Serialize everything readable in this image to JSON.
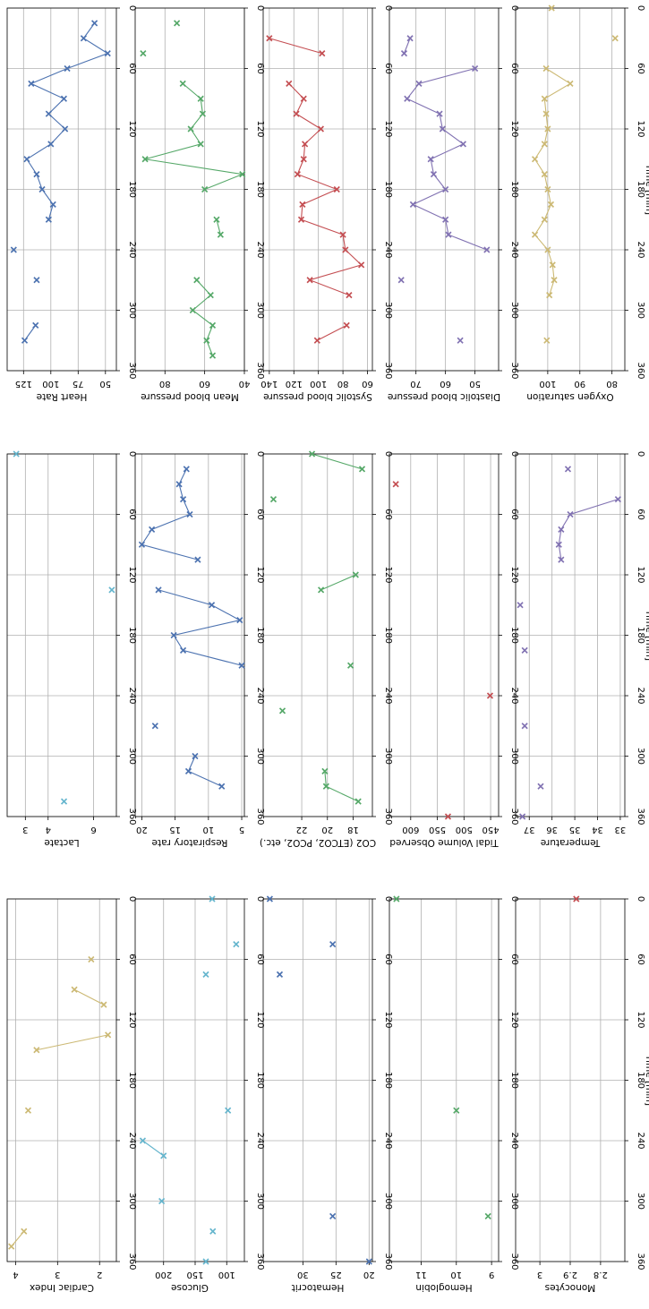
{
  "figure": {
    "xlabel": "Time [min]",
    "colors": {
      "blue": "#4c72b0",
      "green": "#55a868",
      "red": "#c44e52",
      "purple": "#8172b2",
      "gold": "#ccb974",
      "cyan": "#64b5cd",
      "grid": "#b0b0b0"
    },
    "xticks": [
      "0",
      "60",
      "120",
      "180",
      "240",
      "300",
      "360"
    ]
  },
  "chart_data": [
    {
      "type": "line",
      "title": "",
      "ylabel": "Heart Rate",
      "color": "blue",
      "xlim": [
        0,
        360
      ],
      "ylim": [
        140,
        40
      ],
      "yticks": [
        125,
        100,
        75,
        50
      ],
      "xticks": [
        0,
        60,
        120,
        180,
        240,
        300,
        360
      ],
      "xlabel": "Time [min]",
      "segments": [
        {
          "x": [
            15,
            30,
            45,
            60,
            75,
            90,
            105,
            120,
            135,
            150,
            165,
            180,
            195,
            210
          ],
          "y": [
            60,
            70,
            48,
            85,
            118,
            88,
            102,
            87,
            100,
            122,
            113,
            108,
            98,
            102
          ]
        },
        {
          "x": [
            240
          ],
          "y": [
            134
          ]
        },
        {
          "x": [
            270
          ],
          "y": [
            113
          ]
        },
        {
          "x": [
            315,
            330
          ],
          "y": [
            114,
            124
          ]
        }
      ]
    },
    {
      "type": "line",
      "title": "",
      "ylabel": "Lactate",
      "color": "cyan",
      "xlim": [
        0,
        360
      ],
      "ylim": [
        2.2,
        7
      ],
      "yticks": [
        6,
        4,
        3
      ],
      "xticks": [
        0,
        60,
        120,
        180,
        240,
        300,
        360
      ],
      "xlabel": "Time [min]",
      "segments": [
        {
          "x": [
            0
          ],
          "y": [
            2.6
          ]
        },
        {
          "x": [
            135
          ],
          "y": [
            6.8
          ]
        },
        {
          "x": [
            345
          ],
          "y": [
            4.7
          ]
        }
      ]
    },
    {
      "type": "line",
      "title": "",
      "ylabel": "Cardiac Index",
      "color": "gold",
      "xlim": [
        0,
        360
      ],
      "ylim": [
        4.2,
        1.6
      ],
      "yticks": [
        4,
        3,
        2
      ],
      "xticks": [
        0,
        60,
        120,
        180,
        240,
        300,
        360
      ],
      "xlabel": "Time [min]",
      "segments": [
        {
          "x": [
            60
          ],
          "y": [
            2.2
          ]
        },
        {
          "x": [
            90,
            105
          ],
          "y": [
            2.6,
            1.9
          ]
        },
        {
          "x": [
            135,
            150
          ],
          "y": [
            1.8,
            3.5
          ]
        },
        {
          "x": [
            210
          ],
          "y": [
            3.7
          ]
        },
        {
          "x": [
            330,
            345
          ],
          "y": [
            3.8,
            4.1
          ]
        }
      ]
    },
    {
      "type": "line",
      "title": "",
      "ylabel": "Mean blood pressure",
      "color": "green",
      "xlim": [
        0,
        360
      ],
      "ylim": [
        95,
        40
      ],
      "yticks": [
        80,
        60,
        40
      ],
      "xticks": [
        0,
        60,
        120,
        180,
        240,
        300,
        360
      ],
      "xlabel": "Time [min]",
      "segments": [
        {
          "x": [
            15
          ],
          "y": [
            74
          ]
        },
        {
          "x": [
            45
          ],
          "y": [
            91
          ]
        },
        {
          "x": [
            75,
            90,
            105,
            120,
            135,
            150,
            165,
            180
          ],
          "y": [
            71,
            62,
            61,
            67,
            62,
            90,
            41,
            60
          ]
        },
        {
          "x": [
            210,
            225
          ],
          "y": [
            54,
            52
          ]
        },
        {
          "x": [
            270,
            285,
            300,
            315,
            330,
            345
          ],
          "y": [
            64,
            57,
            66,
            56,
            59,
            56
          ]
        }
      ]
    },
    {
      "type": "line",
      "title": "",
      "ylabel": "Respiratory rate",
      "color": "blue",
      "xlim": [
        0,
        360
      ],
      "ylim": [
        21,
        4.6
      ],
      "yticks": [
        20,
        15,
        10,
        5
      ],
      "xticks": [
        0,
        60,
        120,
        180,
        240,
        300,
        360
      ],
      "xlabel": "Time [min]",
      "segments": [
        {
          "x": [
            15,
            30,
            45,
            60,
            75,
            90,
            105
          ],
          "y": [
            13.3,
            14.4,
            13.8,
            12.8,
            18.5,
            20,
            11.6
          ]
        },
        {
          "x": [
            135,
            150,
            165,
            180,
            195,
            210
          ],
          "y": [
            17.5,
            9.5,
            5.3,
            15.2,
            13.8,
            5
          ]
        },
        {
          "x": [
            270
          ],
          "y": [
            18
          ]
        },
        {
          "x": [
            300,
            315,
            330
          ],
          "y": [
            12,
            13,
            8
          ]
        }
      ]
    },
    {
      "type": "line",
      "title": "",
      "ylabel": "Glucose",
      "color": "cyan",
      "xlim": [
        0,
        360
      ],
      "ylim": [
        245,
        72
      ],
      "yticks": [
        200,
        150,
        100
      ],
      "xticks": [
        0,
        60,
        120,
        180,
        240,
        300,
        360
      ],
      "xlabel": "Time [min]",
      "segments": [
        {
          "x": [
            0
          ],
          "y": [
            123
          ]
        },
        {
          "x": [
            45
          ],
          "y": [
            85
          ]
        },
        {
          "x": [
            75
          ],
          "y": [
            133
          ]
        },
        {
          "x": [
            210
          ],
          "y": [
            98
          ]
        },
        {
          "x": [
            240,
            255
          ],
          "y": [
            233,
            200
          ]
        },
        {
          "x": [
            300
          ],
          "y": [
            203
          ]
        },
        {
          "x": [
            330
          ],
          "y": [
            122
          ]
        },
        {
          "x": [
            360
          ],
          "y": [
            133
          ]
        }
      ]
    },
    {
      "type": "line",
      "title": "",
      "ylabel": "Systolic blood pressure",
      "color": "red",
      "xlim": [
        0,
        360
      ],
      "ylim": [
        145,
        56
      ],
      "yticks": [
        140,
        120,
        100,
        80,
        60
      ],
      "xticks": [
        0,
        60,
        120,
        180,
        240,
        300,
        360
      ],
      "xlabel": "Time [min]",
      "segments": [
        {
          "x": [
            30,
            45
          ],
          "y": [
            140,
            97
          ]
        },
        {
          "x": [
            75,
            90,
            105,
            120,
            135,
            150,
            165,
            180,
            195,
            210,
            225,
            240,
            255,
            270,
            285
          ],
          "y": [
            124,
            112,
            118,
            98,
            111,
            112,
            117,
            85,
            113,
            114,
            80,
            78,
            65,
            107,
            75
          ]
        },
        {
          "x": [
            315,
            330
          ],
          "y": [
            77,
            101
          ]
        }
      ]
    },
    {
      "type": "line",
      "title": "",
      "ylabel": "CO2 (ETCO2, PCO2, etc.)",
      "color": "green",
      "xlim": [
        0,
        360
      ],
      "ylim": [
        25,
        16.5
      ],
      "yticks": [
        22,
        20,
        18
      ],
      "xticks": [
        0,
        60,
        120,
        180,
        240,
        300,
        360
      ],
      "xlabel": "Time [min]",
      "segments": [
        {
          "x": [
            0,
            15
          ],
          "y": [
            21.2,
            17.3
          ]
        },
        {
          "x": [
            45
          ],
          "y": [
            24.2
          ]
        },
        {
          "x": [
            120,
            135
          ],
          "y": [
            17.8,
            20.5
          ]
        },
        {
          "x": [
            210
          ],
          "y": [
            18.2
          ]
        },
        {
          "x": [
            255
          ],
          "y": [
            23.5
          ]
        },
        {
          "x": [
            315,
            330,
            345
          ],
          "y": [
            20.2,
            20.1,
            17.6
          ]
        }
      ]
    },
    {
      "type": "line",
      "title": "",
      "ylabel": "Hematocrit",
      "color": "blue",
      "xlim": [
        0,
        360
      ],
      "ylim": [
        36,
        19.5
      ],
      "yticks": [
        30,
        25,
        20
      ],
      "xticks": [
        0,
        60,
        120,
        180,
        240,
        300,
        360
      ],
      "xlabel": "Time [min]",
      "segments": [
        {
          "x": [
            0
          ],
          "y": [
            35
          ]
        },
        {
          "x": [
            45
          ],
          "y": [
            25.5
          ]
        },
        {
          "x": [
            75
          ],
          "y": [
            33.5
          ]
        },
        {
          "x": [
            315
          ],
          "y": [
            25.5
          ]
        },
        {
          "x": [
            360
          ],
          "y": [
            20
          ]
        }
      ]
    },
    {
      "type": "line",
      "title": "",
      "ylabel": "Diastolic blood pressure",
      "color": "purple",
      "xlim": [
        0,
        360
      ],
      "ylim": [
        79,
        42
      ],
      "yticks": [
        70,
        60,
        50
      ],
      "xticks": [
        0,
        60,
        120,
        180,
        240,
        300,
        360
      ],
      "xlabel": "Time [min]",
      "segments": [
        {
          "x": [
            30,
            45
          ],
          "y": [
            72,
            74
          ]
        },
        {
          "x": [
            60,
            75,
            90,
            105,
            120,
            135,
            150,
            165,
            180,
            195,
            210,
            225,
            240
          ],
          "y": [
            50,
            69,
            73,
            62,
            61,
            54,
            65,
            64,
            60,
            71,
            60,
            59,
            46
          ]
        },
        {
          "x": [
            270
          ],
          "y": [
            75
          ]
        },
        {
          "x": [
            330
          ],
          "y": [
            55
          ]
        }
      ]
    },
    {
      "type": "line",
      "title": "",
      "ylabel": "Tidal Volume Observed",
      "color": "red",
      "xlim": [
        0,
        360
      ],
      "ylim": [
        640,
        435
      ],
      "yticks": [
        600,
        550,
        500,
        450
      ],
      "xticks": [
        0,
        60,
        120,
        180,
        240,
        300,
        360
      ],
      "xlabel": "Time [min]",
      "segments": [
        {
          "x": [
            30
          ],
          "y": [
            628
          ]
        },
        {
          "x": [
            240
          ],
          "y": [
            451
          ]
        },
        {
          "x": [
            360
          ],
          "y": [
            530
          ]
        }
      ]
    },
    {
      "type": "line",
      "title": "",
      "ylabel": "Hemoglobin",
      "color": "green",
      "xlim": [
        0,
        360
      ],
      "ylim": [
        11.9,
        8.8
      ],
      "yticks": [
        11,
        10,
        9
      ],
      "xticks": [
        0,
        60,
        120,
        180,
        240,
        300,
        360
      ],
      "xlabel": "Time [min]",
      "segments": [
        {
          "x": [
            0
          ],
          "y": [
            11.7
          ]
        },
        {
          "x": [
            210
          ],
          "y": [
            10
          ]
        },
        {
          "x": [
            315
          ],
          "y": [
            9.1
          ]
        }
      ]
    },
    {
      "type": "line",
      "title": "",
      "ylabel": "Oxygen saturation",
      "color": "gold",
      "xlim": [
        0,
        360
      ],
      "ylim": [
        110,
        76
      ],
      "yticks": [
        100,
        90,
        80
      ],
      "xticks": [
        0,
        60,
        120,
        180,
        240,
        300,
        360
      ],
      "xlabel": "Time [min]",
      "segments": [
        {
          "x": [
            0
          ],
          "y": [
            98.8
          ]
        },
        {
          "x": [
            30
          ],
          "y": [
            79
          ]
        },
        {
          "x": [
            60,
            75,
            90,
            105,
            120,
            135,
            150,
            165,
            180,
            195,
            210,
            225,
            240,
            255,
            270,
            285
          ],
          "y": [
            100.5,
            93,
            101,
            100.5,
            100,
            101,
            104,
            101,
            100,
            99,
            101,
            104,
            100,
            98.5,
            98,
            99.5
          ]
        },
        {
          "x": [
            330
          ],
          "y": [
            100.3
          ]
        }
      ]
    },
    {
      "type": "line",
      "title": "",
      "ylabel": "Temperature",
      "color": "purple",
      "xlim": [
        0,
        360
      ],
      "ylim": [
        37.6,
        32.8
      ],
      "yticks": [
        37,
        36,
        35,
        34,
        33
      ],
      "xticks": [
        0,
        60,
        120,
        180,
        240,
        300,
        360
      ],
      "xlabel": "Time [min]",
      "segments": [
        {
          "x": [
            15
          ],
          "y": [
            35.3
          ]
        },
        {
          "x": [
            45,
            60,
            75,
            90,
            105
          ],
          "y": [
            33.1,
            35.2,
            35.6,
            35.7,
            35.6
          ]
        },
        {
          "x": [
            150
          ],
          "y": [
            37.4
          ]
        },
        {
          "x": [
            195
          ],
          "y": [
            37.2
          ]
        },
        {
          "x": [
            270
          ],
          "y": [
            37.2
          ]
        },
        {
          "x": [
            330
          ],
          "y": [
            36.5
          ]
        },
        {
          "x": [
            360
          ],
          "y": [
            37.3
          ]
        }
      ]
    },
    {
      "type": "line",
      "title": "",
      "ylabel": "Monocytes",
      "color": "red",
      "xlim": [
        0,
        360
      ],
      "ylim": [
        3.08,
        2.72
      ],
      "yticks": [
        3.0,
        2.9,
        2.8
      ],
      "xticks": [
        0,
        60,
        120,
        180,
        240,
        300,
        360
      ],
      "xlabel": "Time [min]",
      "segments": [
        {
          "x": [
            0
          ],
          "y": [
            2.88
          ]
        }
      ]
    }
  ]
}
